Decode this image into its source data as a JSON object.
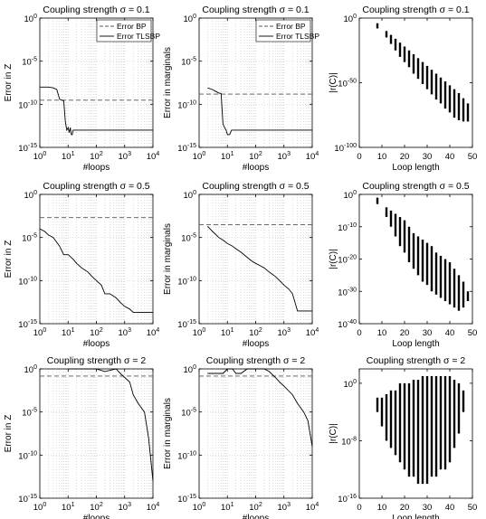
{
  "chart_data": [
    {
      "type": "line",
      "title": "Coupling strength σ = 0.1",
      "xlabel": "#loops",
      "ylabel": "Error in Z",
      "xscale": "log",
      "yscale": "log",
      "xlim": [
        1,
        10000
      ],
      "ylim": [
        1e-15,
        1
      ],
      "xticks": [
        "10^0",
        "10^1",
        "10^2",
        "10^3",
        "10^4"
      ],
      "yticks": [
        "10^-15",
        "10^-10",
        "10^-5",
        "10^0"
      ],
      "grid": true,
      "legend_position": "top-right",
      "series": [
        {
          "name": "Error BP",
          "style": "dashed",
          "x": [
            1,
            10000
          ],
          "y": [
            3e-10,
            3e-10
          ]
        },
        {
          "name": "Error TLSBP",
          "style": "solid",
          "x": [
            1,
            2,
            3,
            4,
            5,
            6,
            7,
            8,
            9,
            10,
            11,
            12,
            13,
            14,
            15,
            10000
          ],
          "y": [
            1e-08,
            1e-08,
            8e-09,
            5e-09,
            4e-10,
            3e-10,
            2.5e-10,
            1e-12,
            1e-13,
            2e-13,
            5e-14,
            2e-13,
            3e-14,
            3e-14,
            1e-13,
            1e-13
          ]
        }
      ]
    },
    {
      "type": "line",
      "title": "Coupling strength σ = 0.1",
      "xlabel": "#loops",
      "ylabel": "Error in marginals",
      "xscale": "log",
      "yscale": "log",
      "xlim": [
        1,
        10000
      ],
      "ylim": [
        1e-15,
        1
      ],
      "xticks": [
        "10^0",
        "10^1",
        "10^2",
        "10^3",
        "10^4"
      ],
      "yticks": [
        "10^-15",
        "10^-10",
        "10^-5",
        "10^0"
      ],
      "grid": true,
      "legend_position": "top-right",
      "series": [
        {
          "name": "Error BP",
          "style": "dashed",
          "x": [
            1,
            10000
          ],
          "y": [
            1.5e-09,
            1.5e-09
          ]
        },
        {
          "name": "Error TLSBP",
          "style": "solid",
          "x": [
            2,
            3,
            4,
            5,
            6,
            7,
            8,
            9,
            10,
            12,
            14,
            10000
          ],
          "y": [
            8e-09,
            5e-09,
            3e-09,
            2e-09,
            1.8e-09,
            5e-13,
            2e-13,
            1e-13,
            3e-14,
            3e-14,
            1e-13,
            1e-13
          ]
        }
      ]
    },
    {
      "type": "scatter",
      "title": "Coupling strength σ = 0.1",
      "xlabel": "Loop length",
      "ylabel": "|r(C)|",
      "yscale": "log",
      "xlim": [
        0,
        50
      ],
      "ylim": [
        1e-100,
        1
      ],
      "xticks": [
        "0",
        "10",
        "20",
        "30",
        "40",
        "50"
      ],
      "yticks": [
        "10^-100",
        "10^-50",
        "10^0"
      ],
      "columns": [
        {
          "x": 8,
          "ymin": 1e-08,
          "ymax": 0.0001
        },
        {
          "x": 12,
          "ymin": 1e-15,
          "ymax": 1e-10
        },
        {
          "x": 14,
          "ymin": 1e-20,
          "ymax": 1e-13
        },
        {
          "x": 16,
          "ymin": 1e-25,
          "ymax": 1e-16
        },
        {
          "x": 18,
          "ymin": 1e-30,
          "ymax": 1e-19
        },
        {
          "x": 20,
          "ymin": 1e-34,
          "ymax": 1e-22
        },
        {
          "x": 22,
          "ymin": 1e-38,
          "ymax": 1e-25
        },
        {
          "x": 24,
          "ymin": 1e-43,
          "ymax": 1e-28
        },
        {
          "x": 26,
          "ymin": 1e-47,
          "ymax": 1e-31
        },
        {
          "x": 28,
          "ymin": 1e-51,
          "ymax": 1e-34
        },
        {
          "x": 30,
          "ymin": 1e-55,
          "ymax": 1e-37
        },
        {
          "x": 32,
          "ymin": 1e-59,
          "ymax": 1e-40
        },
        {
          "x": 34,
          "ymin": 1e-63,
          "ymax": 1e-43
        },
        {
          "x": 36,
          "ymin": 1e-66,
          "ymax": 1e-46
        },
        {
          "x": 38,
          "ymin": 1e-70,
          "ymax": 1e-49
        },
        {
          "x": 40,
          "ymin": 1e-73,
          "ymax": 1e-52
        },
        {
          "x": 42,
          "ymin": 1e-77,
          "ymax": 1e-55
        },
        {
          "x": 44,
          "ymin": 1e-79,
          "ymax": 1e-58
        },
        {
          "x": 46,
          "ymin": 1e-80,
          "ymax": 1e-62
        },
        {
          "x": 48,
          "ymin": 1e-80,
          "ymax": 1e-66
        }
      ]
    },
    {
      "type": "line",
      "title": "Coupling strength σ = 0.5",
      "xlabel": "#loops",
      "ylabel": "Error in Z",
      "xscale": "log",
      "yscale": "log",
      "xlim": [
        1,
        10000
      ],
      "ylim": [
        1e-15,
        1
      ],
      "xticks": [
        "10^0",
        "10^1",
        "10^2",
        "10^3",
        "10^4"
      ],
      "yticks": [
        "10^-15",
        "10^-10",
        "10^-5",
        "10^0"
      ],
      "grid": true,
      "series": [
        {
          "name": "Error BP",
          "style": "dashed",
          "x": [
            1,
            10000
          ],
          "y": [
            0.002,
            0.002
          ]
        },
        {
          "name": "Error TLSBP",
          "style": "solid",
          "x": [
            1,
            1.5,
            2,
            3,
            5,
            7,
            10,
            15,
            20,
            30,
            50,
            70,
            100,
            150,
            200,
            300,
            500,
            700,
            1000,
            1500,
            2000,
            3000,
            10000
          ],
          "y": [
            0.0001,
            5e-05,
            2e-05,
            1e-05,
            1e-06,
            1e-07,
            1e-07,
            3e-08,
            1e-08,
            3e-09,
            1e-09,
            3e-10,
            1e-10,
            3e-11,
            3e-12,
            3e-12,
            1e-12,
            3e-13,
            1e-13,
            5e-14,
            2e-14,
            2e-14,
            2e-14
          ]
        }
      ]
    },
    {
      "type": "line",
      "title": "Coupling strength σ = 0.5",
      "xlabel": "#loops",
      "ylabel": "Error in marginals",
      "xscale": "log",
      "yscale": "log",
      "xlim": [
        1,
        10000
      ],
      "ylim": [
        1e-15,
        1
      ],
      "xticks": [
        "10^0",
        "10^1",
        "10^2",
        "10^3",
        "10^4"
      ],
      "yticks": [
        "10^-15",
        "10^-10",
        "10^-5",
        "10^0"
      ],
      "grid": true,
      "series": [
        {
          "name": "Error BP",
          "style": "dashed",
          "x": [
            1,
            10000
          ],
          "y": [
            0.0003,
            0.0003
          ]
        },
        {
          "name": "Error TLSBP",
          "style": "solid",
          "x": [
            2,
            3,
            5,
            7,
            10,
            15,
            20,
            30,
            50,
            70,
            100,
            150,
            200,
            300,
            500,
            700,
            1000,
            1500,
            2000,
            3000,
            10000
          ],
          "y": [
            0.0002,
            5e-05,
            1e-05,
            5e-06,
            2e-06,
            1e-06,
            5e-07,
            2e-07,
            5e-08,
            2e-08,
            1e-08,
            5e-09,
            3e-09,
            1e-09,
            3e-10,
            1e-10,
            3e-11,
            1e-11,
            3e-12,
            3e-14,
            3e-14
          ]
        }
      ]
    },
    {
      "type": "scatter",
      "title": "Coupling strength σ = 0.5",
      "xlabel": "Loop length",
      "ylabel": "|r(C)|",
      "yscale": "log",
      "xlim": [
        0,
        50
      ],
      "ylim": [
        1e-40,
        1
      ],
      "xticks": [
        "0",
        "10",
        "20",
        "30",
        "40",
        "50"
      ],
      "yticks": [
        "10^-40",
        "10^-30",
        "10^-20",
        "10^-10",
        "10^0"
      ],
      "columns": [
        {
          "x": 8,
          "ymin": 0.001,
          "ymax": 0.1
        },
        {
          "x": 12,
          "ymin": 1e-07,
          "ymax": 0.0001
        },
        {
          "x": 14,
          "ymin": 1e-10,
          "ymax": 1e-05
        },
        {
          "x": 16,
          "ymin": 1e-13,
          "ymax": 1e-06
        },
        {
          "x": 18,
          "ymin": 1e-16,
          "ymax": 1e-07
        },
        {
          "x": 20,
          "ymin": 1e-18,
          "ymax": 1e-08
        },
        {
          "x": 22,
          "ymin": 1e-21,
          "ymax": 1e-10
        },
        {
          "x": 24,
          "ymin": 1e-23,
          "ymax": 1e-12
        },
        {
          "x": 26,
          "ymin": 1e-25,
          "ymax": 1e-13
        },
        {
          "x": 28,
          "ymin": 1e-27,
          "ymax": 1e-14
        },
        {
          "x": 30,
          "ymin": 1e-28,
          "ymax": 1e-15
        },
        {
          "x": 32,
          "ymin": 1e-30,
          "ymax": 1e-16
        },
        {
          "x": 34,
          "ymin": 1e-31,
          "ymax": 1e-18
        },
        {
          "x": 36,
          "ymin": 1e-32,
          "ymax": 1e-19
        },
        {
          "x": 38,
          "ymin": 1e-33,
          "ymax": 1e-20
        },
        {
          "x": 40,
          "ymin": 1e-34,
          "ymax": 1e-21
        },
        {
          "x": 42,
          "ymin": 1e-35,
          "ymax": 1e-23
        },
        {
          "x": 44,
          "ymin": 1e-36,
          "ymax": 1e-25
        },
        {
          "x": 46,
          "ymin": 1e-35,
          "ymax": 1e-27
        },
        {
          "x": 48,
          "ymin": 1e-33,
          "ymax": 1e-30
        }
      ]
    },
    {
      "type": "line",
      "title": "Coupling strength σ = 2",
      "xlabel": "#loops",
      "ylabel": "Error in Z",
      "xscale": "log",
      "yscale": "log",
      "xlim": [
        1,
        10000
      ],
      "ylim": [
        1e-15,
        1
      ],
      "xticks": [
        "10^0",
        "10^1",
        "10^2",
        "10^3",
        "10^4"
      ],
      "yticks": [
        "10^-15",
        "10^-10",
        "10^-5",
        "10^0"
      ],
      "grid": true,
      "series": [
        {
          "name": "Error BP",
          "style": "dashed",
          "x": [
            1,
            10000
          ],
          "y": [
            0.15,
            0.15
          ]
        },
        {
          "name": "Error TLSBP",
          "style": "solid",
          "x": [
            10,
            20,
            50,
            100,
            200,
            500,
            700,
            1000,
            1500,
            2000,
            3000,
            5000,
            7000,
            10000
          ],
          "y": [
            1,
            1,
            1,
            1,
            0.5,
            1,
            0.3,
            0.1,
            0.03,
            0.001,
            0.0001,
            1e-05,
            1e-08,
            1e-13
          ]
        }
      ]
    },
    {
      "type": "line",
      "title": "Coupling strength σ = 2",
      "xlabel": "#loops",
      "ylabel": "Error in marginals",
      "xscale": "log",
      "yscale": "log",
      "xlim": [
        1,
        10000
      ],
      "ylim": [
        1e-15,
        1
      ],
      "xticks": [
        "10^0",
        "10^1",
        "10^2",
        "10^3",
        "10^4"
      ],
      "yticks": [
        "10^-15",
        "10^-10",
        "10^-5",
        "10^0"
      ],
      "grid": true,
      "series": [
        {
          "name": "Error BP",
          "style": "dashed",
          "x": [
            1,
            10000
          ],
          "y": [
            0.15,
            0.15
          ]
        },
        {
          "name": "Error TLSBP",
          "style": "solid",
          "x": [
            2,
            5,
            7,
            10,
            15,
            20,
            30,
            50,
            100,
            200,
            300,
            500,
            700,
            1000,
            2000,
            3000,
            5000,
            7000,
            10000
          ],
          "y": [
            0.3,
            0.3,
            0.3,
            1,
            1,
            0.3,
            0.3,
            1,
            1,
            1,
            0.5,
            0.1,
            0.03,
            0.01,
            0.001,
            0.0001,
            1e-05,
            1e-06,
            1e-09
          ]
        }
      ]
    },
    {
      "type": "scatter",
      "title": "Coupling strength σ = 2",
      "xlabel": "Loop length",
      "ylabel": "|r(C)|",
      "yscale": "log",
      "xlim": [
        0,
        50
      ],
      "ylim": [
        1e-16,
        100
      ],
      "xticks": [
        "0",
        "10",
        "20",
        "30",
        "40",
        "50"
      ],
      "yticks": [
        "10^-16",
        "10^-8",
        "10^0"
      ],
      "columns": [
        {
          "x": 8,
          "ymin": 0.0001,
          "ymax": 0.01
        },
        {
          "x": 10,
          "ymin": 1e-06,
          "ymax": 0.01
        },
        {
          "x": 12,
          "ymin": 1e-08,
          "ymax": 0.03
        },
        {
          "x": 14,
          "ymin": 1e-09,
          "ymax": 0.1
        },
        {
          "x": 16,
          "ymin": 1e-10,
          "ymax": 0.1
        },
        {
          "x": 18,
          "ymin": 1e-11,
          "ymax": 1.0
        },
        {
          "x": 20,
          "ymin": 1e-12,
          "ymax": 1.0
        },
        {
          "x": 22,
          "ymin": 1e-13,
          "ymax": 1.0
        },
        {
          "x": 24,
          "ymin": 1e-13,
          "ymax": 3.0
        },
        {
          "x": 26,
          "ymin": 1e-14,
          "ymax": 3.0
        },
        {
          "x": 28,
          "ymin": 1e-14,
          "ymax": 10.0
        },
        {
          "x": 30,
          "ymin": 1e-14,
          "ymax": 10.0
        },
        {
          "x": 32,
          "ymin": 1e-13,
          "ymax": 10.0
        },
        {
          "x": 34,
          "ymin": 1e-13,
          "ymax": 10.0
        },
        {
          "x": 36,
          "ymin": 1e-12,
          "ymax": 10.0
        },
        {
          "x": 38,
          "ymin": 1e-12,
          "ymax": 10.0
        },
        {
          "x": 40,
          "ymin": 1e-11,
          "ymax": 10.0
        },
        {
          "x": 42,
          "ymin": 1e-09,
          "ymax": 3.0
        },
        {
          "x": 44,
          "ymin": 1e-07,
          "ymax": 1.0
        },
        {
          "x": 46,
          "ymin": 0.0001,
          "ymax": 0.1
        }
      ]
    }
  ]
}
